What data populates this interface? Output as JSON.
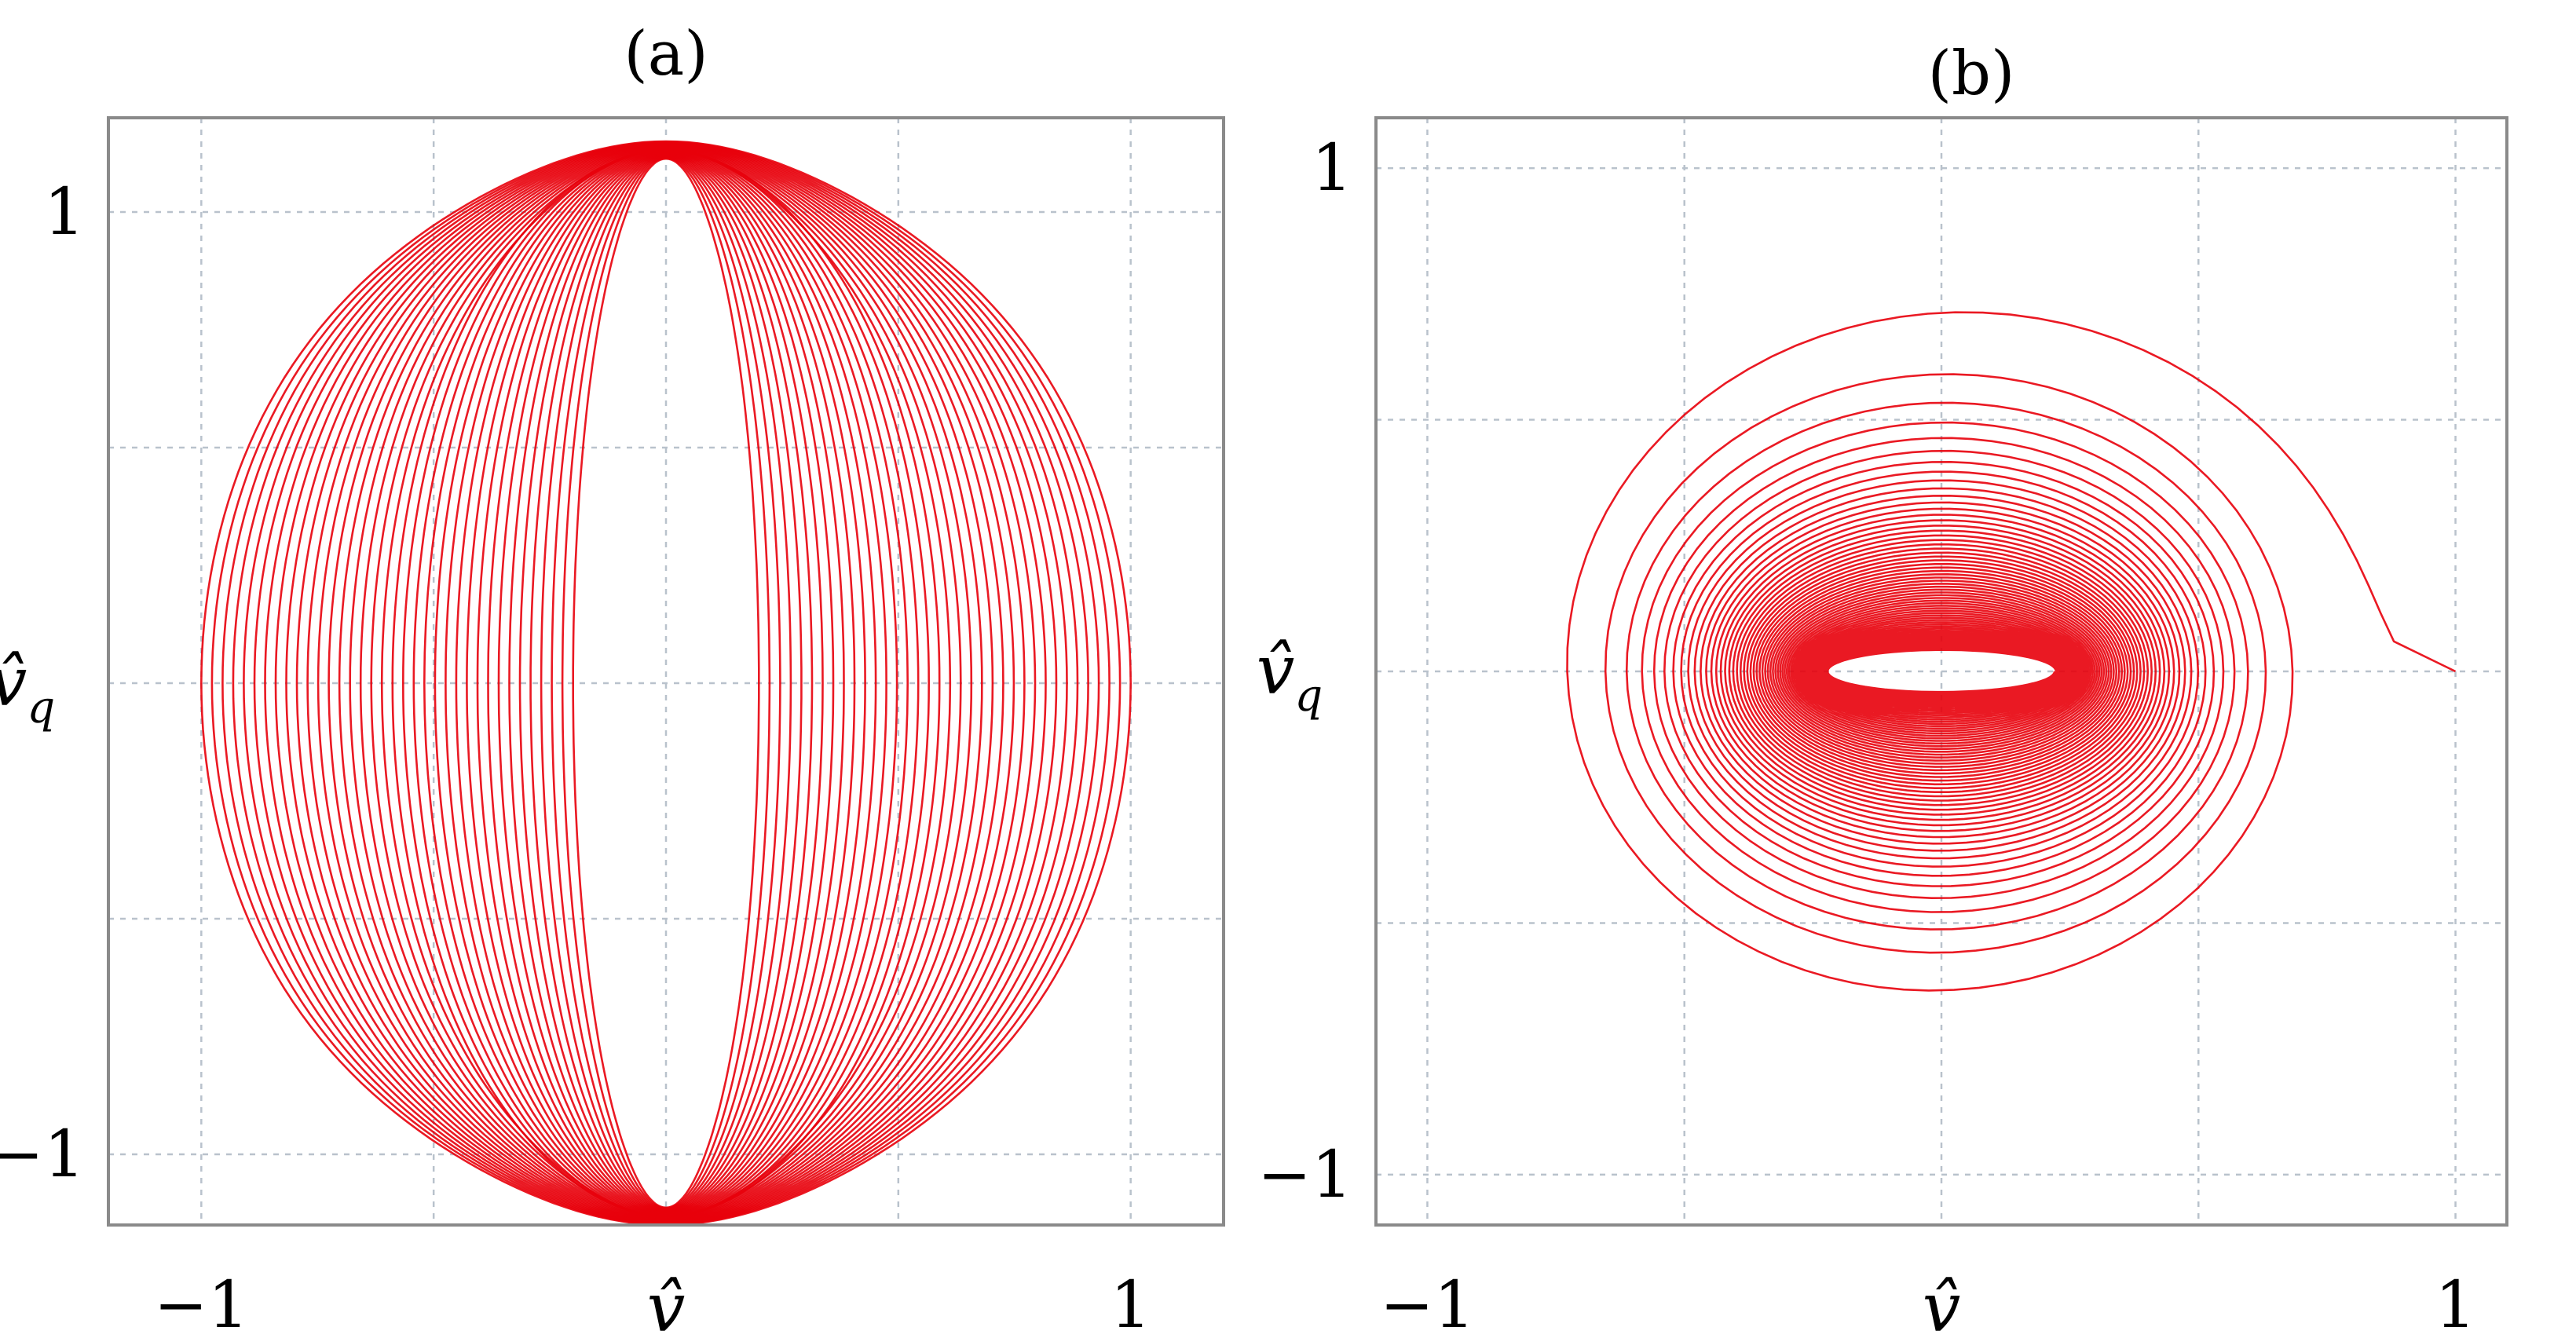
{
  "chart_data": [
    {
      "type": "line",
      "panel_label": "(a)",
      "xlabel": "v̂",
      "ylabel_base": "v̂",
      "ylabel_sub": "q",
      "xlim": [
        -1.2,
        1.2
      ],
      "ylim": [
        -1.15,
        1.2
      ],
      "x_ticks": [
        {
          "value": -1,
          "label": "−1"
        },
        {
          "value": 0,
          "label": ""
        },
        {
          "value": 1,
          "label": "1"
        }
      ],
      "y_ticks": [
        {
          "value": -1,
          "label": "−1"
        },
        {
          "value": 0,
          "label": ""
        },
        {
          "value": 1,
          "label": "1"
        }
      ],
      "x_grid": [
        -1,
        -0.5,
        0,
        0.5,
        1
      ],
      "y_grid": [
        -1,
        -0.5,
        0,
        0.5,
        1
      ],
      "grid": true,
      "color": "#e8000b",
      "trajectory": {
        "description_kind": "nested closed loops",
        "loop_count": 36,
        "x_amplitude_range": [
          0.2,
          1.0
        ],
        "y_top": 1.15,
        "y_bottom": -1.15,
        "x_offset": 0.0
      }
    },
    {
      "type": "line",
      "panel_label": "(b)",
      "xlabel": "v̂",
      "ylabel_base": "v̂",
      "ylabel_sub": "q",
      "xlim": [
        -1.1,
        1.1
      ],
      "ylim": [
        -1.1,
        1.1
      ],
      "x_ticks": [
        {
          "value": -1,
          "label": "−1"
        },
        {
          "value": 0,
          "label": ""
        },
        {
          "value": 1,
          "label": "1"
        }
      ],
      "y_ticks": [
        {
          "value": -1,
          "label": "−1"
        },
        {
          "value": 0,
          "label": ""
        },
        {
          "value": 1,
          "label": "1"
        }
      ],
      "x_grid": [
        -1,
        -0.5,
        0,
        0.5,
        1
      ],
      "y_grid": [
        -1,
        -0.5,
        0,
        0.5,
        1
      ],
      "grid": true,
      "color": "#e8000b",
      "trajectory": {
        "description_kind": "decaying elliptical spiral",
        "outer_radius": [
          1.0,
          1.0
        ],
        "inner_radius": [
          0.22,
          0.04
        ],
        "revolutions": 60,
        "center": [
          0,
          0
        ]
      }
    }
  ]
}
